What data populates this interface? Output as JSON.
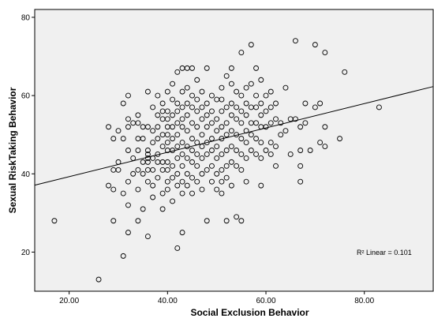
{
  "chart_data": {
    "type": "scatter",
    "title": "",
    "xlabel": "Social Exclusion Behavior",
    "ylabel": "Sexual RiskTaking Behavior",
    "xlim": [
      13,
      94
    ],
    "ylim": [
      10,
      82
    ],
    "xticks": [
      20,
      40,
      60,
      80
    ],
    "xtick_labels": [
      "20.00",
      "40.00",
      "60.00",
      "80.00"
    ],
    "yticks": [
      20,
      40,
      60,
      80
    ],
    "ytick_labels": [
      "20",
      "40",
      "60",
      "80"
    ],
    "grid": false,
    "legend": null,
    "colors": {
      "plot_background": "#f0f0f0",
      "marker": "#000000",
      "fit_line": "#000000"
    },
    "fit_line": {
      "label": "R² Linear = 0.101",
      "x": [
        13,
        94
      ],
      "y": [
        37.1,
        62.3
      ]
    },
    "points": [
      [
        17,
        28
      ],
      [
        26,
        13
      ],
      [
        28,
        52
      ],
      [
        28,
        37
      ],
      [
        29,
        49
      ],
      [
        29,
        41
      ],
      [
        29,
        28
      ],
      [
        29,
        36
      ],
      [
        30,
        51
      ],
      [
        30,
        43
      ],
      [
        30,
        41
      ],
      [
        31,
        58
      ],
      [
        31,
        49
      ],
      [
        31,
        35
      ],
      [
        31,
        19
      ],
      [
        32,
        60
      ],
      [
        32,
        52
      ],
      [
        32,
        54
      ],
      [
        32,
        46
      ],
      [
        32,
        38
      ],
      [
        32,
        32
      ],
      [
        32,
        25
      ],
      [
        33,
        53
      ],
      [
        33,
        44
      ],
      [
        33,
        40
      ],
      [
        34,
        55
      ],
      [
        34,
        53
      ],
      [
        34,
        49
      ],
      [
        34,
        46
      ],
      [
        34,
        41
      ],
      [
        34,
        36
      ],
      [
        34,
        28
      ],
      [
        35,
        52
      ],
      [
        35,
        49
      ],
      [
        35,
        43
      ],
      [
        35,
        40
      ],
      [
        35,
        31
      ],
      [
        36,
        61
      ],
      [
        36,
        52
      ],
      [
        36,
        46
      ],
      [
        36,
        45
      ],
      [
        36,
        44
      ],
      [
        36,
        43
      ],
      [
        36,
        41
      ],
      [
        36,
        38
      ],
      [
        36,
        24
      ],
      [
        37,
        57
      ],
      [
        37,
        51
      ],
      [
        37,
        48
      ],
      [
        37,
        44
      ],
      [
        37,
        41
      ],
      [
        37,
        37
      ],
      [
        37,
        34
      ],
      [
        38,
        60
      ],
      [
        38,
        55
      ],
      [
        38,
        52
      ],
      [
        38,
        49
      ],
      [
        38,
        45
      ],
      [
        38,
        43
      ],
      [
        38,
        39
      ],
      [
        39,
        58
      ],
      [
        39,
        56
      ],
      [
        39,
        54
      ],
      [
        39,
        50
      ],
      [
        39,
        47
      ],
      [
        39,
        43
      ],
      [
        39,
        41
      ],
      [
        39,
        35
      ],
      [
        39,
        31
      ],
      [
        40,
        61
      ],
      [
        40,
        56
      ],
      [
        40,
        54
      ],
      [
        40,
        52
      ],
      [
        40,
        50
      ],
      [
        40,
        48
      ],
      [
        40,
        46
      ],
      [
        40,
        43
      ],
      [
        40,
        41
      ],
      [
        40,
        38
      ],
      [
        40,
        36
      ],
      [
        41,
        63
      ],
      [
        41,
        59
      ],
      [
        41,
        55
      ],
      [
        41,
        52
      ],
      [
        41,
        49
      ],
      [
        41,
        46
      ],
      [
        41,
        42
      ],
      [
        41,
        39
      ],
      [
        41,
        33
      ],
      [
        42,
        66
      ],
      [
        42,
        58
      ],
      [
        42,
        56
      ],
      [
        42,
        53
      ],
      [
        42,
        50
      ],
      [
        42,
        47
      ],
      [
        42,
        44
      ],
      [
        42,
        40
      ],
      [
        42,
        37
      ],
      [
        42,
        21
      ],
      [
        43,
        67
      ],
      [
        43,
        61
      ],
      [
        43,
        57
      ],
      [
        43,
        54
      ],
      [
        43,
        52
      ],
      [
        43,
        48
      ],
      [
        43,
        45
      ],
      [
        43,
        42
      ],
      [
        43,
        38
      ],
      [
        43,
        35
      ],
      [
        43,
        25
      ],
      [
        44,
        67
      ],
      [
        44,
        62
      ],
      [
        44,
        58
      ],
      [
        44,
        55
      ],
      [
        44,
        51
      ],
      [
        44,
        47
      ],
      [
        44,
        44
      ],
      [
        44,
        40
      ],
      [
        44,
        37
      ],
      [
        45,
        67
      ],
      [
        45,
        60
      ],
      [
        45,
        57
      ],
      [
        45,
        53
      ],
      [
        45,
        49
      ],
      [
        45,
        46
      ],
      [
        45,
        43
      ],
      [
        45,
        39
      ],
      [
        45,
        35
      ],
      [
        46,
        64
      ],
      [
        46,
        59
      ],
      [
        46,
        56
      ],
      [
        46,
        52
      ],
      [
        46,
        48
      ],
      [
        46,
        45
      ],
      [
        46,
        42
      ],
      [
        46,
        38
      ],
      [
        47,
        61
      ],
      [
        47,
        57
      ],
      [
        47,
        54
      ],
      [
        47,
        50
      ],
      [
        47,
        47
      ],
      [
        47,
        44
      ],
      [
        47,
        40
      ],
      [
        47,
        36
      ],
      [
        48,
        67
      ],
      [
        48,
        58
      ],
      [
        48,
        55
      ],
      [
        48,
        52
      ],
      [
        48,
        48
      ],
      [
        48,
        45
      ],
      [
        48,
        41
      ],
      [
        48,
        28
      ],
      [
        49,
        60
      ],
      [
        49,
        56
      ],
      [
        49,
        53
      ],
      [
        49,
        49
      ],
      [
        49,
        46
      ],
      [
        49,
        42
      ],
      [
        49,
        38
      ],
      [
        50,
        59
      ],
      [
        50,
        54
      ],
      [
        50,
        51
      ],
      [
        50,
        47
      ],
      [
        50,
        44
      ],
      [
        50,
        40
      ],
      [
        50,
        36
      ],
      [
        51,
        62
      ],
      [
        51,
        59
      ],
      [
        51,
        56
      ],
      [
        51,
        52
      ],
      [
        51,
        49
      ],
      [
        51,
        45
      ],
      [
        51,
        41
      ],
      [
        51,
        38
      ],
      [
        51,
        35
      ],
      [
        52,
        65
      ],
      [
        52,
        57
      ],
      [
        52,
        53
      ],
      [
        52,
        50
      ],
      [
        52,
        46
      ],
      [
        52,
        42
      ],
      [
        52,
        39
      ],
      [
        52,
        28
      ],
      [
        53,
        67
      ],
      [
        53,
        63
      ],
      [
        53,
        58
      ],
      [
        53,
        55
      ],
      [
        53,
        51
      ],
      [
        53,
        47
      ],
      [
        53,
        43
      ],
      [
        53,
        37
      ],
      [
        54,
        61
      ],
      [
        54,
        57
      ],
      [
        54,
        54
      ],
      [
        54,
        50
      ],
      [
        54,
        46
      ],
      [
        54,
        42
      ],
      [
        54,
        29
      ],
      [
        55,
        71
      ],
      [
        55,
        60
      ],
      [
        55,
        56
      ],
      [
        55,
        53
      ],
      [
        55,
        49
      ],
      [
        55,
        45
      ],
      [
        55,
        41
      ],
      [
        55,
        28
      ],
      [
        56,
        62
      ],
      [
        56,
        58
      ],
      [
        56,
        55
      ],
      [
        56,
        51
      ],
      [
        56,
        48
      ],
      [
        56,
        44
      ],
      [
        56,
        38
      ],
      [
        57,
        73
      ],
      [
        57,
        63
      ],
      [
        57,
        57
      ],
      [
        57,
        53
      ],
      [
        57,
        50
      ],
      [
        57,
        46
      ],
      [
        58,
        67
      ],
      [
        58,
        60
      ],
      [
        58,
        57
      ],
      [
        58,
        53
      ],
      [
        58,
        49
      ],
      [
        58,
        45
      ],
      [
        59,
        64
      ],
      [
        59,
        58
      ],
      [
        59,
        55
      ],
      [
        59,
        52
      ],
      [
        59,
        48
      ],
      [
        59,
        44
      ],
      [
        59,
        37
      ],
      [
        60,
        60
      ],
      [
        60,
        56
      ],
      [
        60,
        52
      ],
      [
        60,
        46
      ],
      [
        61,
        61
      ],
      [
        61,
        57
      ],
      [
        61,
        53
      ],
      [
        61,
        48
      ],
      [
        61,
        45
      ],
      [
        62,
        58
      ],
      [
        62,
        54
      ],
      [
        62,
        47
      ],
      [
        62,
        42
      ],
      [
        63,
        53
      ],
      [
        63,
        50
      ],
      [
        64,
        62
      ],
      [
        64,
        51
      ],
      [
        65,
        54
      ],
      [
        65,
        45
      ],
      [
        66,
        74
      ],
      [
        66,
        54
      ],
      [
        67,
        52
      ],
      [
        67,
        46
      ],
      [
        67,
        42
      ],
      [
        67,
        38
      ],
      [
        68,
        58
      ],
      [
        68,
        53
      ],
      [
        69,
        46
      ],
      [
        70,
        73
      ],
      [
        70,
        57
      ],
      [
        71,
        58
      ],
      [
        71,
        48
      ],
      [
        72,
        71
      ],
      [
        72,
        52
      ],
      [
        72,
        47
      ],
      [
        75,
        49
      ],
      [
        76,
        66
      ],
      [
        83,
        57
      ]
    ]
  }
}
